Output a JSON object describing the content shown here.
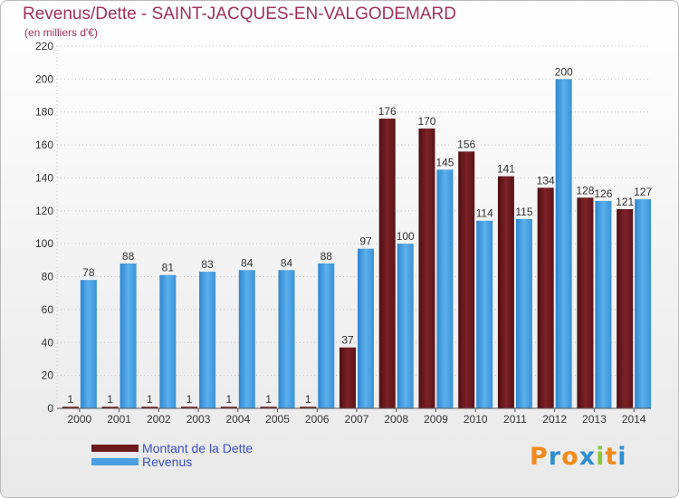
{
  "title": "Revenus/Dette - SAINT-JACQUES-EN-VALGODEMARD",
  "subtitle": "(en milliers d'€)",
  "colors": {
    "dette": "#6b1a1e",
    "revenus": "#4aa0e0",
    "title": "#a0305a",
    "legend_text": "#3b50c8"
  },
  "legend": [
    {
      "label": "Montant de la Dette",
      "color": "#6b1a1e"
    },
    {
      "label": "Revenus",
      "color": "#4aa0e0"
    }
  ],
  "logo": {
    "letters": [
      "P",
      "r",
      "o",
      "x",
      "i",
      "t",
      "i"
    ],
    "colors": [
      "#f08a1c",
      "#2e8fd0",
      "#f08a1c",
      "#2e8fd0",
      "#8cc63f",
      "#f08a1c",
      "#2e8fd0"
    ],
    "icon": "proxiti-logo"
  },
  "chart_data": {
    "type": "bar",
    "title": "Revenus/Dette - SAINT-JACQUES-EN-VALGODEMARD",
    "subtitle": "(en milliers d'€)",
    "categories": [
      "2000",
      "2001",
      "2002",
      "2003",
      "2004",
      "2005",
      "2006",
      "2007",
      "2008",
      "2009",
      "2010",
      "2011",
      "2012",
      "2013",
      "2014"
    ],
    "series": [
      {
        "name": "Montant de la Dette",
        "values": [
          1,
          1,
          1,
          1,
          1,
          1,
          1,
          37,
          176,
          170,
          156,
          141,
          134,
          128,
          121
        ],
        "labels": [
          "1",
          "1",
          "1",
          "1",
          "1",
          "1",
          "1",
          "37",
          "176",
          "170",
          "156",
          "141",
          "134",
          "128",
          "121"
        ]
      },
      {
        "name": "Revenus",
        "values": [
          78,
          88,
          81,
          83,
          84,
          84,
          88,
          97,
          100,
          145,
          114,
          115,
          200,
          126,
          127
        ],
        "labels": [
          "78",
          "88",
          "81",
          "83",
          "84",
          "84",
          "88",
          "97",
          "100",
          "145",
          "114",
          "115",
          "200",
          "126",
          "127"
        ]
      }
    ],
    "yticks": [
      "0",
      "20",
      "40",
      "60",
      "80",
      "100",
      "120",
      "140",
      "160",
      "180",
      "200",
      "220"
    ],
    "ylim": [
      0,
      220
    ],
    "grid": true,
    "legend_position": "bottom-left"
  }
}
